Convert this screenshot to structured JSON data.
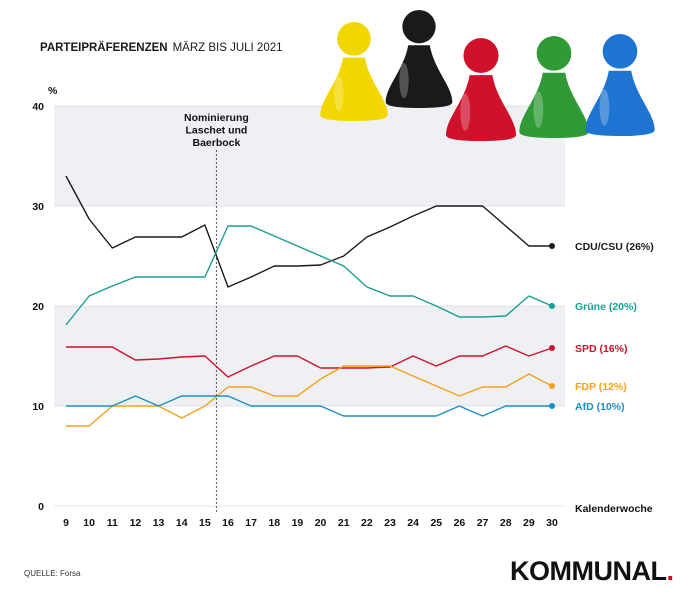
{
  "header": {
    "title_bold": "PARTEIPRÄFERENZEN",
    "title_rest": "MÄRZ BIS JULI 2021"
  },
  "source": "QUELLE: Forsa",
  "brand": {
    "name": "KOMMUNAL",
    "dot": ".",
    "dot_color": "#e2001a"
  },
  "icons": {
    "pawns": [
      {
        "name": "yellow-pawn-icon",
        "color": "#f2d600"
      },
      {
        "name": "black-pawn-icon",
        "color": "#1a1a1a"
      },
      {
        "name": "red-pawn-icon",
        "color": "#d0112b"
      },
      {
        "name": "green-pawn-icon",
        "color": "#2f9a36"
      },
      {
        "name": "blue-pawn-icon",
        "color": "#1f74d1"
      }
    ]
  },
  "chart_data": {
    "type": "line",
    "ylabel": "%",
    "xlabel": "Kalenderwoche",
    "ylim": [
      0,
      40
    ],
    "yticks": [
      0,
      10,
      20,
      30,
      40
    ],
    "x": [
      9,
      10,
      11,
      12,
      13,
      14,
      15,
      16,
      17,
      18,
      19,
      20,
      21,
      22,
      23,
      24,
      25,
      26,
      27,
      28,
      29,
      30
    ],
    "annotation": {
      "text": [
        "Nominierung",
        "Laschet und",
        "Baerbock"
      ],
      "x": 15.5
    },
    "bands": [
      [
        10,
        20
      ],
      [
        30,
        40
      ]
    ],
    "series": [
      {
        "name": "CDU/CSU (26%)",
        "color": "#1a1a1a",
        "values": [
          33,
          28.7,
          25.8,
          26.9,
          26.9,
          26.9,
          28.1,
          21.9,
          22.9,
          24,
          24,
          24.1,
          25,
          26.9,
          27.9,
          29,
          30,
          30,
          30,
          28,
          26,
          26
        ]
      },
      {
        "name": "Grüne (20%)",
        "color": "#1b9e94",
        "values": [
          18.1,
          21,
          22,
          22.9,
          22.9,
          22.9,
          22.9,
          28,
          28,
          27,
          26,
          25,
          24,
          21.9,
          21,
          21,
          20,
          18.9,
          18.9,
          19,
          21,
          20
        ]
      },
      {
        "name": "SPD (16%)",
        "color": "#d0112b",
        "values": [
          15.9,
          15.9,
          15.9,
          14.6,
          14.7,
          14.9,
          15,
          12.9,
          14,
          15,
          15,
          13.8,
          13.8,
          13.8,
          13.9,
          15,
          14,
          15,
          15,
          16,
          15,
          15.8
        ]
      },
      {
        "name": "FDP (12%)",
        "color": "#f5a01a",
        "values": [
          8,
          8,
          10,
          10,
          10,
          8.8,
          10,
          11.9,
          11.9,
          11,
          11,
          12.7,
          14,
          14,
          14,
          13,
          12,
          11,
          11.9,
          11.9,
          13.2,
          12
        ]
      },
      {
        "name": "AfD (10%)",
        "color": "#1a8fc4",
        "values": [
          10,
          10,
          10,
          11,
          10,
          11,
          11,
          11,
          10,
          10,
          10,
          10,
          9,
          9,
          9,
          9,
          9,
          10,
          9,
          10,
          10,
          10
        ]
      }
    ]
  }
}
